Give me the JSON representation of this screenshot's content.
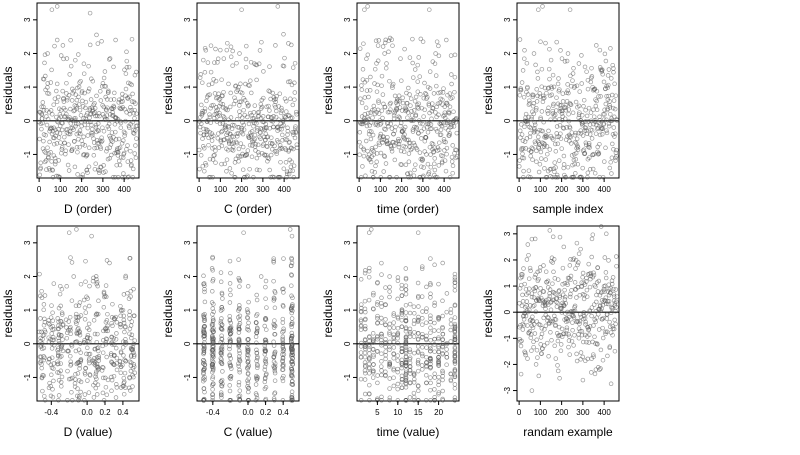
{
  "chart_data": [
    {
      "type": "scatter",
      "title": "",
      "xlabel": "D (order)",
      "ylabel": "residuals",
      "xlim": [
        -10,
        470
      ],
      "ylim": [
        -1.7,
        3.5
      ],
      "xticks": [
        0,
        100,
        200,
        300,
        400
      ],
      "xtick_labels": [
        "0",
        "100",
        "200",
        "300",
        "400"
      ],
      "yticks": [
        -1,
        0,
        1,
        2,
        3
      ],
      "ytick_labels": [
        "-1",
        "0",
        "1",
        "2",
        "3"
      ],
      "hline": 0,
      "grid": false,
      "gen": {
        "seed": 101,
        "n": 460,
        "mode": "order",
        "x_range": [
          0,
          460
        ]
      },
      "points": [
        [
          60,
          3.3
        ],
        [
          85,
          3.4
        ],
        [
          240,
          3.2
        ],
        [
          85,
          2.4
        ],
        [
          360,
          2.4
        ],
        [
          40,
          2.0
        ],
        [
          170,
          1.8
        ],
        [
          350,
          1.6
        ]
      ]
    },
    {
      "type": "scatter",
      "title": "",
      "xlabel": "C (order)",
      "ylabel": "residuals",
      "xlim": [
        -10,
        470
      ],
      "ylim": [
        -1.7,
        3.5
      ],
      "xticks": [
        0,
        100,
        200,
        300,
        400
      ],
      "xtick_labels": [
        "0",
        "100",
        "200",
        "300",
        "400"
      ],
      "yticks": [
        -1,
        0,
        1,
        2,
        3
      ],
      "ytick_labels": [
        "-1",
        "0",
        "1",
        "2",
        "3"
      ],
      "hline": 0,
      "grid": false,
      "gen": {
        "seed": 202,
        "n": 460,
        "mode": "order",
        "x_range": [
          0,
          460
        ]
      },
      "points": [
        [
          200,
          3.3
        ],
        [
          370,
          3.4
        ],
        [
          130,
          2.1
        ],
        [
          150,
          2.2
        ],
        [
          190,
          2.0
        ],
        [
          420,
          2.3
        ],
        [
          260,
          1.7
        ]
      ]
    },
    {
      "type": "scatter",
      "title": "",
      "xlabel": "time (order)",
      "ylabel": "residuals",
      "xlim": [
        -10,
        470
      ],
      "ylim": [
        -1.7,
        3.5
      ],
      "xticks": [
        0,
        100,
        200,
        300,
        400
      ],
      "xtick_labels": [
        "0",
        "100",
        "200",
        "300",
        "400"
      ],
      "yticks": [
        -1,
        0,
        1,
        2,
        3
      ],
      "ytick_labels": [
        "-1",
        "0",
        "1",
        "2",
        "3"
      ],
      "hline": 0,
      "grid": false,
      "gen": {
        "seed": 303,
        "n": 460,
        "mode": "order",
        "x_range": [
          0,
          460
        ]
      },
      "points": [
        [
          25,
          3.3
        ],
        [
          40,
          3.4
        ],
        [
          330,
          3.3
        ],
        [
          120,
          2.0
        ],
        [
          360,
          2.0
        ],
        [
          410,
          2.4
        ]
      ]
    },
    {
      "type": "scatter",
      "title": "",
      "xlabel": "sample index",
      "ylabel": "residuals",
      "xlim": [
        -10,
        470
      ],
      "ylim": [
        -1.7,
        3.5
      ],
      "xticks": [
        0,
        100,
        200,
        300,
        400
      ],
      "xtick_labels": [
        "0",
        "100",
        "200",
        "300",
        "400"
      ],
      "yticks": [
        -1,
        0,
        1,
        2,
        3
      ],
      "ytick_labels": [
        "-1",
        "0",
        "1",
        "2",
        "3"
      ],
      "hline": 0,
      "grid": false,
      "gen": {
        "seed": 404,
        "n": 460,
        "mode": "order",
        "x_range": [
          0,
          460
        ]
      },
      "points": [
        [
          90,
          3.3
        ],
        [
          110,
          3.4
        ],
        [
          240,
          3.3
        ],
        [
          70,
          2.0
        ],
        [
          230,
          2.0
        ],
        [
          380,
          2.1
        ],
        [
          310,
          1.6
        ]
      ]
    },
    {
      "type": "scatter",
      "title": "",
      "xlabel": "D (value)",
      "ylabel": "residuals",
      "xlim": [
        -0.56,
        0.58
      ],
      "ylim": [
        -1.7,
        3.5
      ],
      "xticks": [
        -0.4,
        0.0,
        0.2,
        0.4
      ],
      "xtick_labels": [
        "-0.4",
        "0.0",
        "0.2",
        "0.4"
      ],
      "yticks": [
        -1,
        0,
        1,
        2,
        3
      ],
      "ytick_labels": [
        "-1",
        "0",
        "1",
        "2",
        "3"
      ],
      "hline": 0,
      "grid": false,
      "gen": {
        "seed": 505,
        "n": 460,
        "mode": "cols",
        "cols": [
          -0.5,
          -0.4,
          -0.3,
          -0.2,
          -0.1,
          0.0,
          0.1,
          0.2,
          0.3,
          0.4,
          0.5
        ],
        "jitter": 0.035
      },
      "points": [
        [
          -0.2,
          3.3
        ],
        [
          -0.12,
          3.4
        ],
        [
          0.05,
          3.2
        ],
        [
          0.25,
          2.4
        ],
        [
          -0.15,
          2.0
        ],
        [
          0.45,
          1.5
        ]
      ]
    },
    {
      "type": "scatter",
      "title": "",
      "xlabel": "C (value)",
      "ylabel": "residuals",
      "xlim": [
        -0.58,
        0.58
      ],
      "ylim": [
        -1.7,
        3.5
      ],
      "xticks": [
        -0.4,
        0.0,
        0.2,
        0.4
      ],
      "xtick_labels": [
        "-0.4",
        "0.0",
        "0.2",
        "0.4"
      ],
      "yticks": [
        -1,
        0,
        1,
        2,
        3
      ],
      "ytick_labels": [
        "-1",
        "0",
        "1",
        "2",
        "3"
      ],
      "hline": 0,
      "grid": false,
      "gen": {
        "seed": 606,
        "n": 460,
        "mode": "cols",
        "cols": [
          -0.5,
          -0.4,
          -0.3,
          -0.2,
          -0.1,
          0.0,
          0.1,
          0.2,
          0.3,
          0.4,
          0.5
        ],
        "jitter": 0.01,
        "heavy": [
          -0.5,
          -0.4,
          0.5
        ]
      },
      "points": [
        [
          -0.05,
          3.3
        ],
        [
          0.48,
          3.4
        ],
        [
          0.5,
          3.2
        ],
        [
          -0.2,
          2.1
        ],
        [
          0.15,
          2.0
        ],
        [
          0.5,
          2.4
        ]
      ]
    },
    {
      "type": "scatter",
      "title": "",
      "xlabel": "time (value)",
      "ylabel": "residuals",
      "xlim": [
        0,
        25
      ],
      "ylim": [
        -1.7,
        3.5
      ],
      "xticks": [
        5,
        10,
        15,
        20
      ],
      "xtick_labels": [
        "5",
        "10",
        "15",
        "20"
      ],
      "yticks": [
        -1,
        0,
        1,
        2,
        3
      ],
      "ytick_labels": [
        "-1",
        "0",
        "1",
        "2",
        "3"
      ],
      "hline": 0,
      "grid": false,
      "gen": {
        "seed": 707,
        "n": 460,
        "mode": "cols",
        "cols": [
          1,
          2,
          3,
          4,
          5,
          6,
          7,
          8,
          9,
          10,
          11,
          12,
          13,
          14,
          15,
          16,
          17,
          18,
          19,
          20,
          21,
          22,
          23,
          24
        ],
        "jitter": 0.05,
        "heavy": [
          12,
          24
        ]
      },
      "points": [
        [
          3,
          3.3
        ],
        [
          3.5,
          3.4
        ],
        [
          15,
          3.3
        ],
        [
          8,
          2.0
        ],
        [
          21,
          2.4
        ],
        [
          5,
          1.8
        ]
      ]
    },
    {
      "type": "scatter",
      "title": "",
      "xlabel": "randam example",
      "ylabel": "residuals",
      "xlim": [
        -10,
        470
      ],
      "ylim": [
        -3.4,
        3.3
      ],
      "xticks": [
        0,
        100,
        200,
        300,
        400
      ],
      "xtick_labels": [
        "0",
        "100",
        "200",
        "300",
        "400"
      ],
      "yticks": [
        -3,
        -2,
        -1,
        0,
        1,
        2,
        3
      ],
      "ytick_labels": [
        "-3",
        "-2",
        "-1",
        "0",
        "1",
        "2",
        "3"
      ],
      "hline": 0,
      "grid": false,
      "gen": {
        "seed": 808,
        "n": 460,
        "mode": "normal",
        "x_range": [
          0,
          460
        ]
      },
      "points": [
        [
          410,
          3.0
        ],
        [
          60,
          2.8
        ],
        [
          60,
          -3.0
        ],
        [
          300,
          -2.6
        ],
        [
          80,
          -2.0
        ],
        [
          210,
          2.5
        ]
      ]
    }
  ]
}
